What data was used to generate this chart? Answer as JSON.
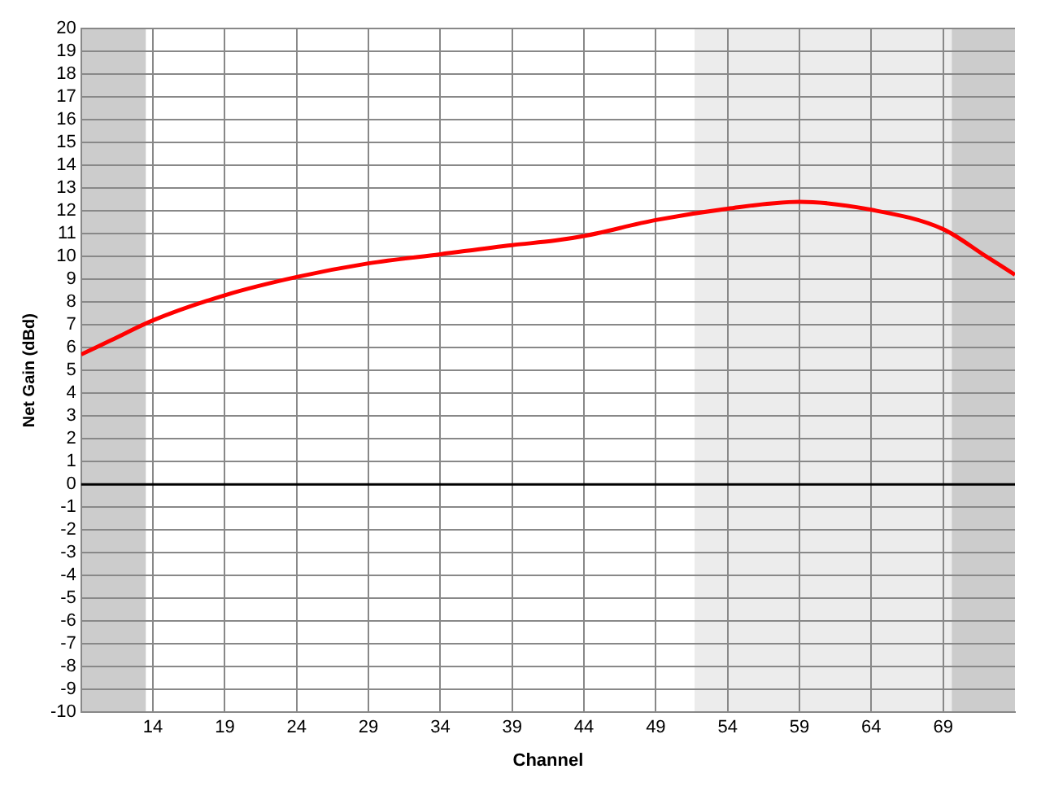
{
  "chart_data": {
    "type": "line",
    "xlabel": "Channel",
    "ylabel": "Net Gain (dBd)",
    "x": [
      9,
      11,
      14,
      19,
      24,
      29,
      34,
      39,
      42,
      44,
      49,
      54,
      59,
      64,
      69,
      72,
      74
    ],
    "series": [
      {
        "color": "#ff0000",
        "values": [
          5.7,
          6.3,
          7.2,
          8.3,
          9.1,
          9.7,
          10.1,
          10.5,
          10.7,
          10.9,
          11.6,
          12.1,
          12.4,
          12.05,
          11.2,
          10.0,
          9.2
        ]
      }
    ],
    "xlim": [
      9,
      74
    ],
    "xticks": [
      14,
      19,
      24,
      29,
      34,
      39,
      44,
      49,
      54,
      59,
      64,
      69
    ],
    "ylim": [
      -10,
      20
    ],
    "yticks": [
      -10,
      -9,
      -8,
      -7,
      -6,
      -5,
      -4,
      -3,
      -2,
      -1,
      0,
      1,
      2,
      3,
      4,
      5,
      6,
      7,
      8,
      9,
      10,
      11,
      12,
      13,
      14,
      15,
      16,
      17,
      18,
      19,
      20
    ],
    "grid": true,
    "legend": false,
    "marker": "none",
    "line_style": "solid",
    "ref_lines": [
      {
        "axis": "y",
        "value": 0,
        "color": "#000000"
      }
    ],
    "bands": [
      {
        "axis": "x",
        "from": 9,
        "to": 13.5,
        "color": "#cccccc"
      },
      {
        "axis": "x",
        "from": 51.7,
        "to": 69.6,
        "color": "#ececec"
      },
      {
        "axis": "x",
        "from": 69.6,
        "to": 74,
        "color": "#cccccc"
      }
    ]
  }
}
